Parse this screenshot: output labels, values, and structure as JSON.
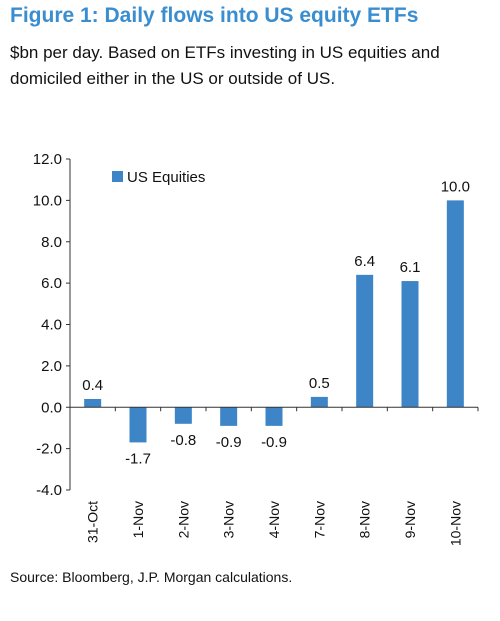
{
  "figure": {
    "title": "Figure 1: Daily flows into US equity ETFs",
    "subtitle": "$bn per day. Based on ETFs investing in US equities and domiciled either in the US or outside of US.",
    "source": "Source: Bloomberg, J.P. Morgan calculations."
  },
  "chart_data": {
    "type": "bar",
    "categories": [
      "31-Oct",
      "1-Nov",
      "2-Nov",
      "3-Nov",
      "4-Nov",
      "7-Nov",
      "8-Nov",
      "9-Nov",
      "10-Nov"
    ],
    "series": [
      {
        "name": "US Equities",
        "values": [
          0.4,
          -1.7,
          -0.8,
          -0.9,
          -0.9,
          0.5,
          6.4,
          6.1,
          10.0
        ]
      }
    ],
    "data_labels": [
      "0.4",
      "-1.7",
      "-0.8",
      "-0.9",
      "-0.9",
      "0.5",
      "6.4",
      "6.1",
      "10.0"
    ],
    "yticks": [
      "12.0",
      "10.0",
      "8.0",
      "6.0",
      "4.0",
      "2.0",
      "0.0",
      "-2.0",
      "-4.0"
    ],
    "ylim": [
      -4,
      12
    ],
    "grid": false,
    "legend_position": "top-left",
    "bar_color": "#3d85c6"
  }
}
